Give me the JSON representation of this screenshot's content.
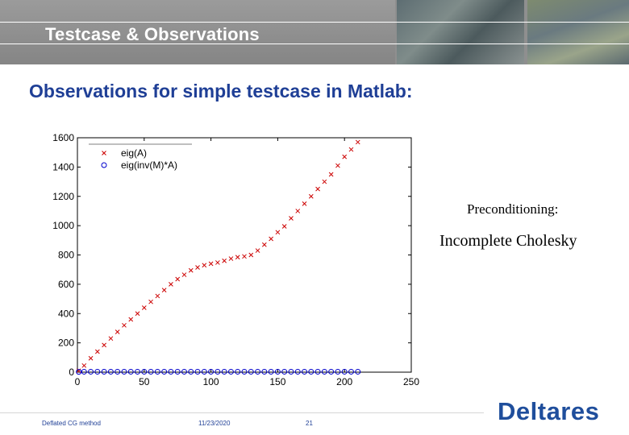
{
  "header": {
    "title": "Testcase & Observations"
  },
  "subtitle": "Observations for simple testcase in Matlab:",
  "notes": {
    "line1": "Preconditioning:",
    "line2": "Incomplete Cholesky"
  },
  "footer": {
    "left": "Deflated CG method",
    "date": "11/23/2020",
    "page": "21"
  },
  "logo": {
    "text": "Deltares"
  },
  "colors": {
    "brand": "#1f3f96",
    "series_a": "#cc0000",
    "series_b": "#0000cc"
  },
  "chart_data": {
    "type": "scatter",
    "title": "",
    "xlabel": "",
    "ylabel": "",
    "xlim": [
      0,
      250
    ],
    "ylim": [
      0,
      1600
    ],
    "xticks": [
      0,
      50,
      100,
      150,
      200,
      250
    ],
    "yticks": [
      0,
      200,
      400,
      600,
      800,
      1000,
      1200,
      1400,
      1600
    ],
    "legend_position": "top-left",
    "grid": false,
    "series": [
      {
        "name": "eig(A)",
        "marker": "x",
        "color": "#cc0000",
        "x": [
          1,
          5,
          10,
          15,
          20,
          25,
          30,
          35,
          40,
          45,
          50,
          55,
          60,
          65,
          70,
          75,
          80,
          85,
          90,
          95,
          100,
          105,
          110,
          115,
          120,
          125,
          130,
          135,
          140,
          145,
          150,
          155,
          160,
          165,
          170,
          175,
          180,
          185,
          190,
          195,
          200,
          205,
          210
        ],
        "y": [
          10,
          45,
          95,
          140,
          185,
          230,
          275,
          320,
          360,
          400,
          440,
          480,
          520,
          560,
          600,
          635,
          665,
          695,
          715,
          730,
          740,
          748,
          760,
          775,
          785,
          790,
          800,
          830,
          870,
          910,
          955,
          995,
          1050,
          1100,
          1150,
          1200,
          1250,
          1300,
          1350,
          1410,
          1470,
          1520,
          1570
        ]
      },
      {
        "name": "eig(inv(M)*A)",
        "marker": "o",
        "color": "#0000cc",
        "x": [
          1,
          5,
          10,
          15,
          20,
          25,
          30,
          35,
          40,
          45,
          50,
          55,
          60,
          65,
          70,
          75,
          80,
          85,
          90,
          95,
          100,
          105,
          110,
          115,
          120,
          125,
          130,
          135,
          140,
          145,
          150,
          155,
          160,
          165,
          170,
          175,
          180,
          185,
          190,
          195,
          200,
          205,
          210
        ],
        "y": [
          2,
          3,
          3,
          3,
          3,
          3,
          3,
          3,
          3,
          3,
          3,
          3,
          3,
          3,
          3,
          3,
          3,
          3,
          3,
          3,
          3,
          3,
          3,
          3,
          3,
          3,
          3,
          3,
          3,
          3,
          3,
          3,
          3,
          3,
          3,
          3,
          3,
          3,
          3,
          3,
          3,
          3,
          3
        ]
      }
    ]
  }
}
